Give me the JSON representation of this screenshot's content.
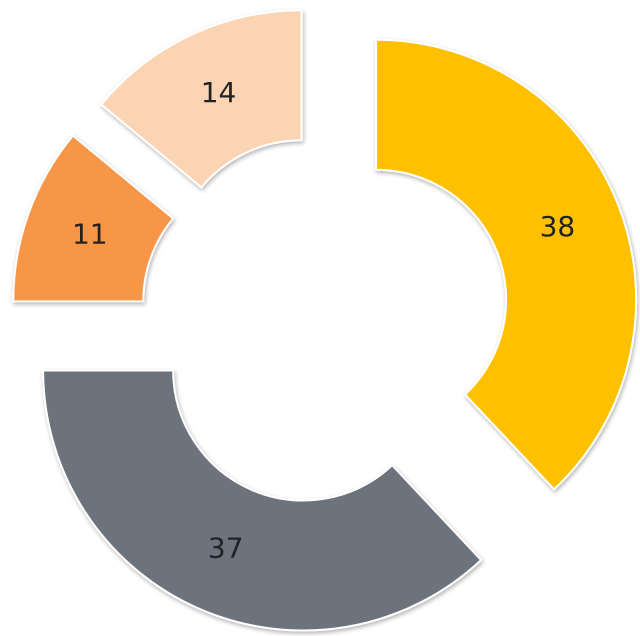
{
  "chart_data": {
    "type": "donut",
    "values": [
      38,
      37,
      11,
      14
    ],
    "colors": [
      "#ffc000",
      "#6d737b",
      "#f79646",
      "#fbd4b4"
    ],
    "exploded": true
  }
}
